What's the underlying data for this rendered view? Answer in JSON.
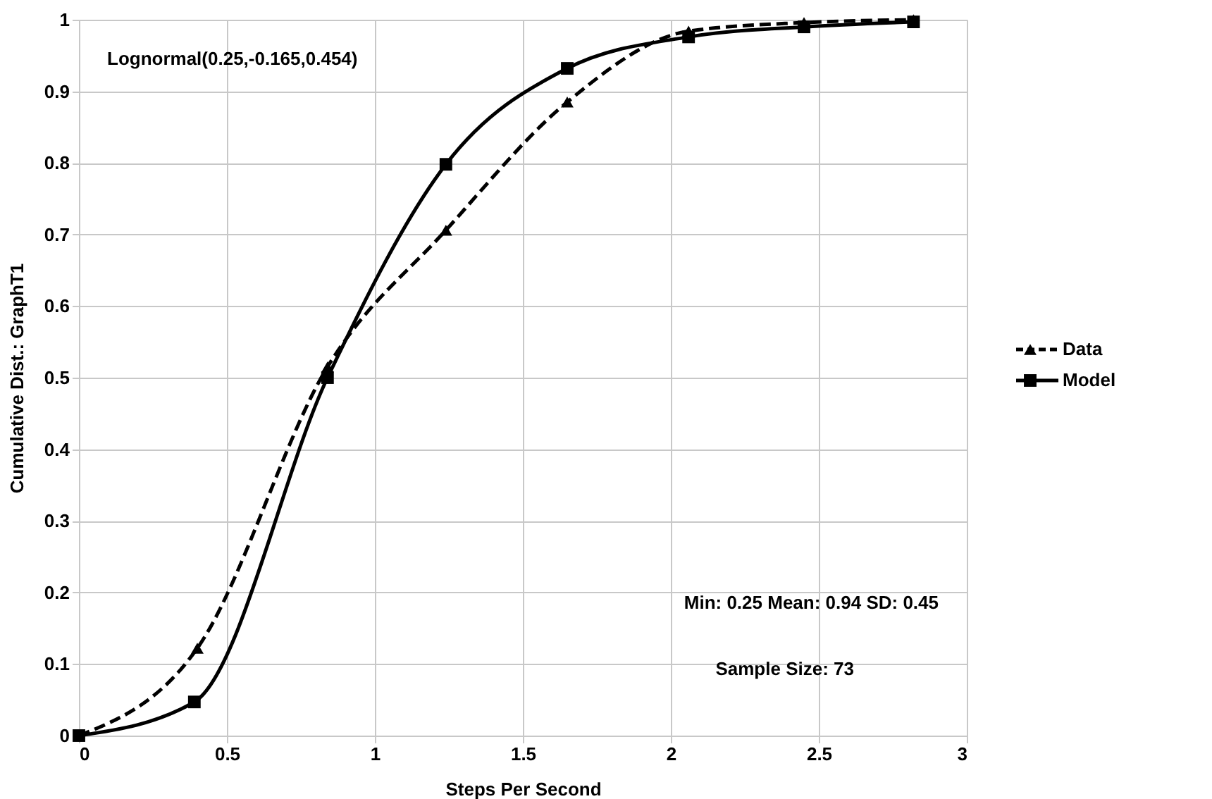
{
  "chart_data": {
    "type": "line",
    "xlabel": "Steps Per Second",
    "ylabel": "Cumulative Dist.: GraphT1",
    "annotations": [
      "Lognormal(0.25,-0.165,0.454)",
      "Min: 0.25 Mean: 0.94 SD: 0.45",
      "Sample Size: 73"
    ],
    "series": [
      {
        "name": "Model",
        "color": "#000000",
        "line_style": "solid",
        "marker": "square",
        "x": [
          0,
          0.39,
          0.84,
          1.24,
          1.65,
          2.06,
          2.45,
          2.82
        ],
        "values": [
          0,
          0.047,
          0.5,
          0.798,
          0.932,
          0.976,
          0.99,
          0.997
        ]
      },
      {
        "name": "Data",
        "color": "#000000",
        "line_style": "dashed",
        "marker": "triangle",
        "x": [
          0,
          0.4,
          0.84,
          1.24,
          1.65,
          2.06,
          2.45,
          2.82
        ],
        "values": [
          0,
          0.122,
          0.515,
          0.706,
          0.885,
          0.984,
          0.996,
          1.0
        ]
      }
    ],
    "xlim": [
      0,
      3
    ],
    "xticks": [
      0,
      0.5,
      1,
      1.5,
      2,
      2.5,
      3
    ],
    "ylim": [
      0,
      1
    ],
    "yticks": [
      0,
      0.1,
      0.2,
      0.3,
      0.4,
      0.5,
      0.6,
      0.7,
      0.8,
      0.9,
      1
    ],
    "grid": true,
    "legend": "right"
  }
}
